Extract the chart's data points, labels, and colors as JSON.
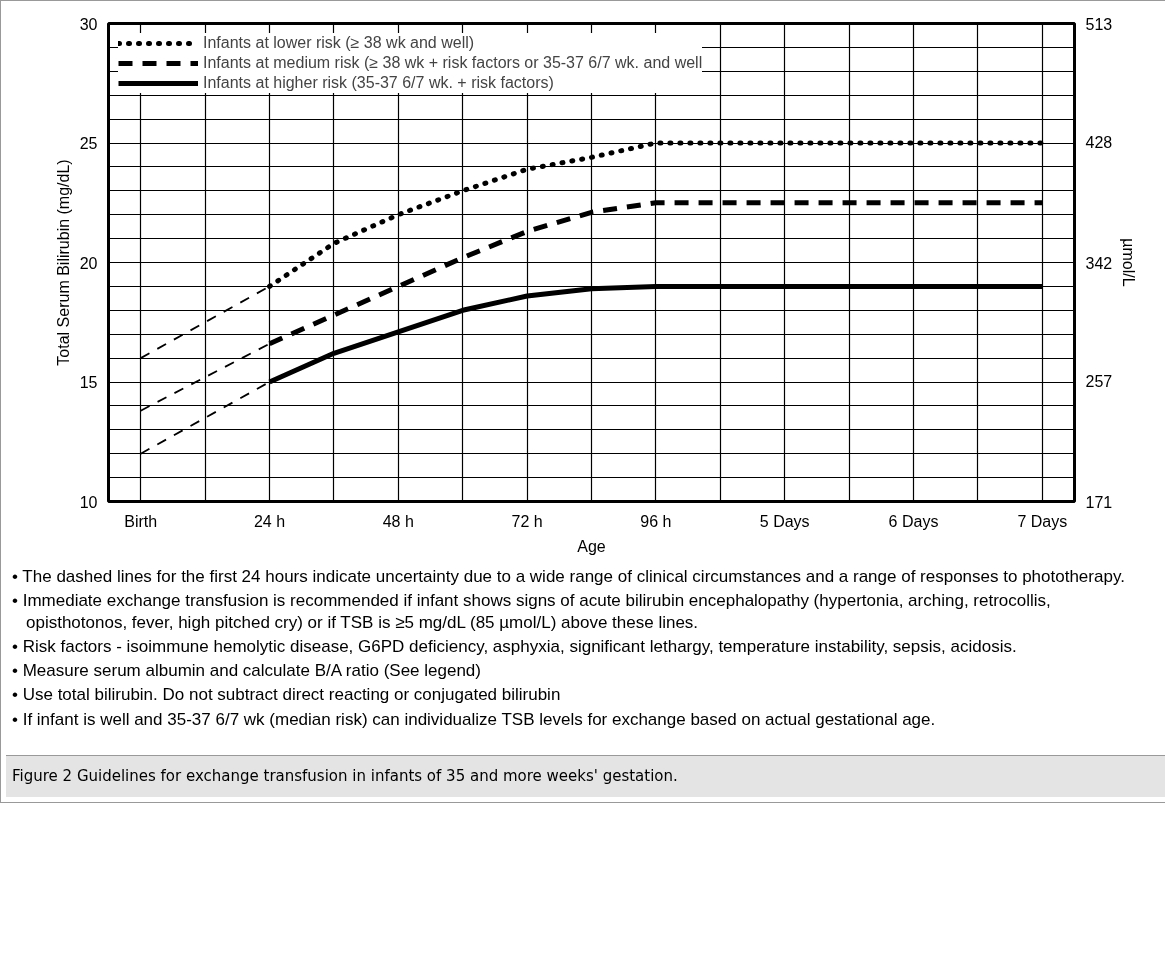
{
  "chart_data": {
    "type": "line",
    "xlabel": "Age",
    "ylabel": "Total Serum Bilirubin (mg/dL)",
    "y2label": "µmol/L",
    "categories": [
      "Birth",
      null,
      "24 h",
      null,
      "48 h",
      null,
      "72 h",
      null,
      "96 h",
      null,
      "5 Days",
      null,
      "6 Days",
      null,
      "7 Days"
    ],
    "ylim": [
      10,
      30
    ],
    "yticks": [
      10,
      {
        "value": 11,
        "label": null
      },
      {
        "value": 12,
        "label": null
      },
      {
        "value": 13,
        "label": null
      },
      {
        "value": 14,
        "label": null
      },
      15,
      {
        "value": 16,
        "label": null
      },
      {
        "value": 17,
        "label": null
      },
      {
        "value": 18,
        "label": null
      },
      {
        "value": 19,
        "label": null
      },
      20,
      {
        "value": 21,
        "label": null
      },
      {
        "value": 22,
        "label": null
      },
      {
        "value": 23,
        "label": null
      },
      {
        "value": 24,
        "label": null
      },
      25,
      {
        "value": 26,
        "label": null
      },
      {
        "value": 27,
        "label": null
      },
      {
        "value": 28,
        "label": null
      },
      {
        "value": 29,
        "label": null
      },
      30
    ],
    "y2lim": [
      171,
      513
    ],
    "y2ticks": [
      171,
      257,
      342,
      428,
      513
    ],
    "grid": true,
    "legend": "top left",
    "series": [
      {
        "name": "Infants at lower risk (≥ 38 wk and well)",
        "color": "#000000",
        "line_style": "dotted",
        "values": [
          null,
          null,
          19,
          20.8,
          22,
          23,
          23.9,
          24.4,
          25,
          25,
          25,
          25,
          25,
          25,
          25
        ]
      },
      {
        "name": "Infants at medium risk (≥ 38 wk + risk factors or 35-37 6/7 wk. and well",
        "color": "#000000",
        "line_style": "dashed",
        "values": [
          null,
          null,
          16.6,
          17.8,
          19,
          20.2,
          21.3,
          22.1,
          22.5,
          22.5,
          22.5,
          22.5,
          22.5,
          22.5,
          22.5
        ]
      },
      {
        "name": "Infants at higher risk (35-37 6/7 wk. + risk factors)",
        "color": "#000000",
        "line_style": "solid",
        "values": [
          null,
          null,
          15,
          16.2,
          17.1,
          18,
          18.6,
          18.9,
          19,
          19,
          19,
          19,
          19,
          19,
          19
        ]
      },
      {
        "color": "#000000",
        "line_style": "dashed",
        "values": [
          16,
          17.5,
          19,
          null,
          null,
          null,
          null,
          null,
          null,
          null,
          null,
          null,
          null,
          null,
          null
        ]
      },
      {
        "color": "#000000",
        "line_style": "dashed",
        "values": [
          13.8,
          15.2,
          16.6,
          null,
          null,
          null,
          null,
          null,
          null,
          null,
          null,
          null,
          null,
          null,
          null
        ]
      },
      {
        "color": "#000000",
        "line_style": "dashed",
        "values": [
          12,
          13.5,
          15,
          null,
          null,
          null,
          null,
          null,
          null,
          null,
          null,
          null,
          null,
          null,
          null
        ]
      }
    ],
    "annotations": [
      "• The dashed lines for the first 24 hours indicate uncertainty due to a wide range of clinical circumstances and a range of responses to phototherapy.",
      "• Immediate exchange transfusion is recommended if infant shows signs of acute bilirubin encephalopathy (hypertonia, arching, retrocollis, opisthotonos, fever, high pitched cry) or if TSB is ≥5 mg/dL (85 µmol/L) above these lines.",
      "• Risk factors - isoimmune hemolytic disease, G6PD deficiency, asphyxia, significant lethargy, temperature instability, sepsis, acidosis.",
      "• Measure serum albumin and calculate B/A ratio (See legend)",
      "• Use total bilirubin.  Do not subtract direct reacting or conjugated bilirubin",
      "• If infant is well and 35-37 6/7 wk (median risk) can individualize TSB levels for exchange based on actual gestational age.",
      "Figure 2 Guidelines for exchange transfusion in infants of 35 and more weeks' gestation."
    ]
  }
}
